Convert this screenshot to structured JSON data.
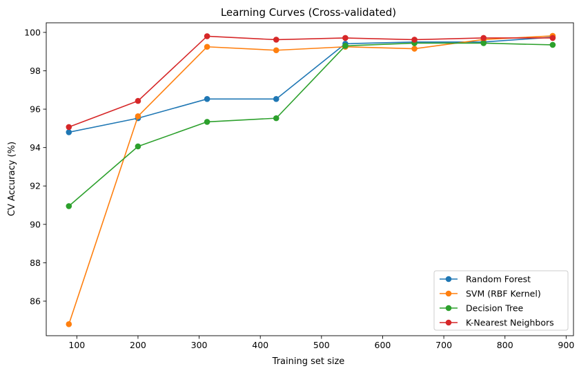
{
  "chart_data": {
    "type": "line",
    "title": "Learning Curves (Cross-validated)",
    "xlabel": "Training set size",
    "ylabel": "CV Accuracy (%)",
    "xlim": [
      50,
      912
    ],
    "ylim": [
      84.2,
      100.5
    ],
    "xticks": [
      100,
      200,
      300,
      400,
      500,
      600,
      700,
      800,
      900
    ],
    "yticks": [
      86,
      88,
      90,
      92,
      94,
      96,
      98,
      100
    ],
    "grid": false,
    "legend_position": "lower right",
    "x": [
      87,
      200,
      313,
      426,
      539,
      652,
      765,
      878
    ],
    "series": [
      {
        "name": "Random Forest",
        "color": "#1f77b4",
        "values": [
          94.8,
          95.53,
          96.53,
          96.53,
          99.41,
          99.5,
          99.5,
          99.75
        ]
      },
      {
        "name": "SVM (RBF Kernel)",
        "color": "#ff7f0e",
        "values": [
          84.8,
          95.63,
          99.25,
          99.07,
          99.25,
          99.15,
          99.63,
          99.82
        ]
      },
      {
        "name": "Decision Tree",
        "color": "#2ca02c",
        "values": [
          90.95,
          94.06,
          95.34,
          95.53,
          99.3,
          99.44,
          99.44,
          99.35
        ]
      },
      {
        "name": "K-Nearest Neighbors",
        "color": "#d62728",
        "values": [
          95.07,
          96.43,
          99.8,
          99.62,
          99.71,
          99.62,
          99.71,
          99.71
        ]
      }
    ]
  }
}
